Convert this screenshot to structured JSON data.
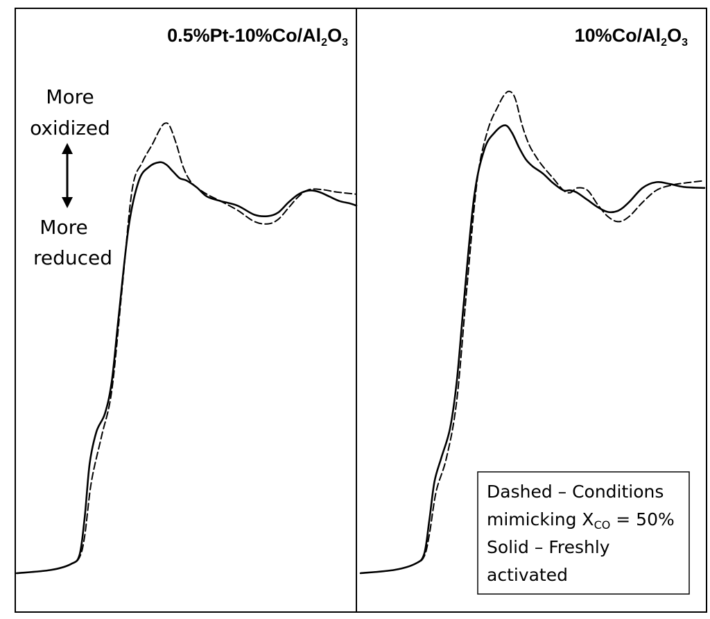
{
  "chart_data": [
    {
      "type": "line",
      "panel": "left",
      "title": {
        "main": "0.5%Pt-10%Co/Al",
        "sub1": "2",
        "mid": "O",
        "sub2": "3"
      },
      "annotation": {
        "top_line1": "More",
        "top_line2": "oxidized",
        "bottom_line1": "More",
        "bottom_line2": "reduced"
      },
      "xlim": [
        0,
        100
      ],
      "ylim": [
        0,
        100
      ],
      "series": [
        {
          "style": "dashed",
          "x": [
            0,
            10,
            16,
            18.5,
            20,
            22,
            25,
            28,
            31,
            34,
            37,
            40,
            42,
            43.5,
            45,
            47,
            49,
            51,
            53,
            56,
            60,
            65,
            70,
            74,
            77,
            80,
            83,
            86,
            90,
            94,
            100
          ],
          "y": [
            0,
            0.7,
            2,
            3.5,
            8,
            20,
            30,
            40,
            62,
            84,
            90,
            94,
            97,
            98.5,
            98,
            94,
            89,
            86,
            84.5,
            83,
            81.5,
            79.5,
            77,
            76.5,
            77.5,
            80,
            82.5,
            84,
            84,
            83.5,
            83
          ]
        },
        {
          "style": "solid",
          "x": [
            0,
            10,
            16,
            18.5,
            20,
            21.5,
            23.5,
            26,
            28,
            30,
            33,
            36,
            39,
            42,
            44,
            46,
            48,
            50,
            53,
            56,
            60,
            65,
            70,
            74,
            77,
            80,
            83,
            86,
            89,
            92,
            95,
            98,
            100
          ],
          "y": [
            0,
            0.7,
            2,
            4,
            12,
            24,
            31,
            35,
            42,
            56,
            76,
            86,
            89,
            90,
            89.5,
            88,
            86.5,
            86,
            84.5,
            82.5,
            81.5,
            80.5,
            78.5,
            78.2,
            79,
            81.2,
            83,
            83.8,
            83.5,
            82.5,
            81.5,
            81,
            80.5
          ]
        }
      ]
    },
    {
      "type": "line",
      "panel": "right",
      "title": {
        "main": "10%Co/Al",
        "sub1": "2",
        "mid": "O",
        "sub2": "3"
      },
      "legend": {
        "line1": "Dashed – Conditions",
        "line2_pre": "mimicking X",
        "line2_sub": "CO",
        "line2_post": " = 50%",
        "line3": "Solid – Freshly",
        "line4": "activated"
      },
      "xlim": [
        0,
        100
      ],
      "ylim": [
        0,
        100
      ],
      "series": [
        {
          "style": "dashed",
          "x": [
            0,
            10,
            16,
            18.5,
            20,
            22,
            25,
            28,
            31,
            34,
            37,
            40,
            42,
            43.5,
            45,
            47,
            49,
            51,
            53,
            56,
            59,
            61,
            63,
            66,
            69,
            72,
            75,
            78,
            82,
            86,
            90,
            94,
            100
          ],
          "y": [
            0,
            0.7,
            2,
            3.5,
            8,
            17,
            24,
            36,
            60,
            82,
            92,
            97,
            99.5,
            100,
            98.5,
            93,
            89,
            86.5,
            84.5,
            82,
            79.5,
            79,
            80,
            79.5,
            76.5,
            74,
            73,
            74,
            77,
            79.5,
            80.5,
            81,
            81.5
          ]
        },
        {
          "style": "solid",
          "x": [
            0,
            10,
            16,
            18.5,
            20,
            21.5,
            23.5,
            26,
            28,
            30,
            33,
            36,
            39,
            42,
            44,
            46,
            48,
            50,
            53,
            56,
            59,
            61,
            63,
            66,
            69,
            72,
            75,
            78,
            82,
            86,
            90,
            94,
            100
          ],
          "y": [
            0,
            0.7,
            2,
            4,
            11,
            19,
            24,
            30,
            40,
            56,
            78,
            88,
            91.5,
            93,
            91.5,
            88.5,
            86,
            84.5,
            83,
            81,
            79.5,
            79.5,
            79,
            77.5,
            76,
            75,
            75.3,
            77,
            80,
            81.2,
            80.8,
            80.2,
            80
          ]
        }
      ]
    }
  ]
}
